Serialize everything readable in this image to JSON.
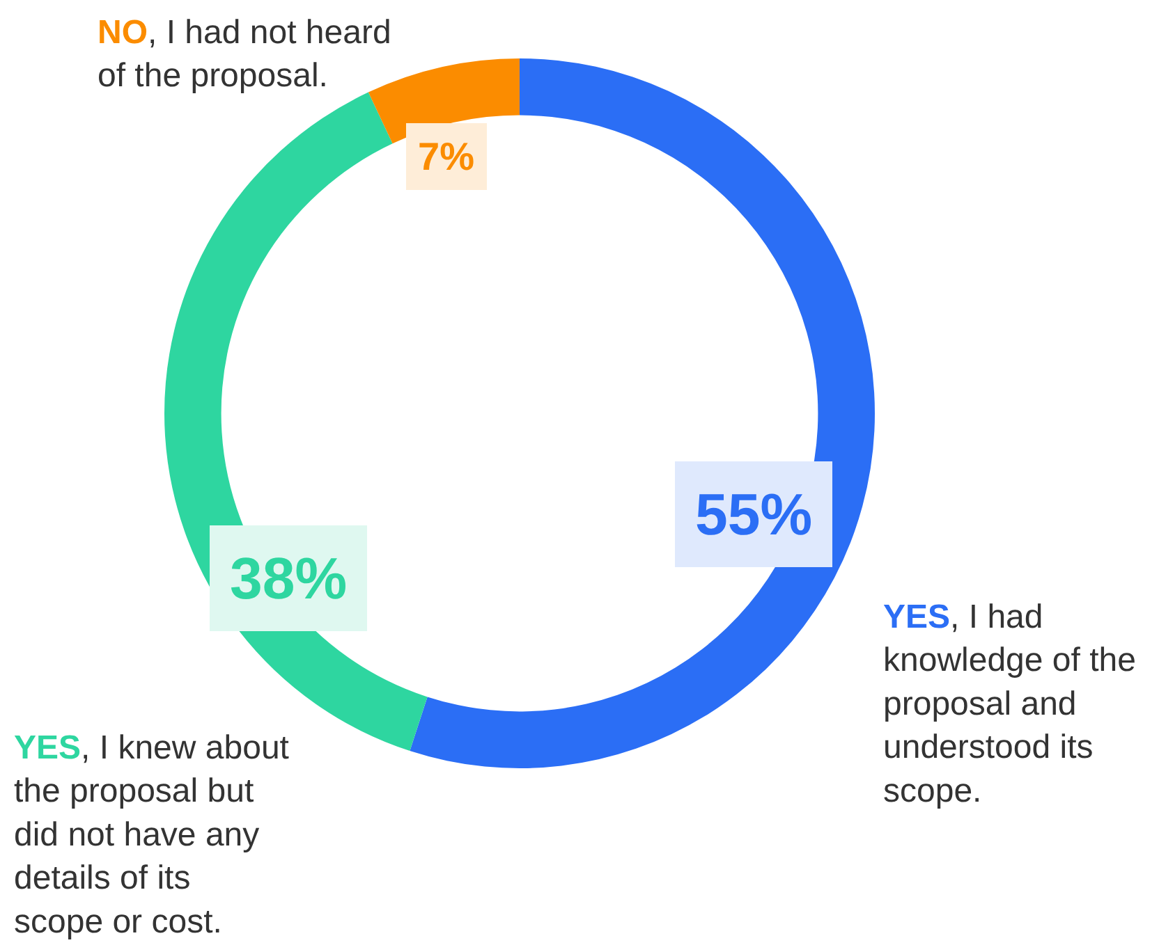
{
  "chart_data": {
    "type": "donut",
    "categories": [
      "YES, I had knowledge of the proposal and understood its scope.",
      "YES, I knew about the proposal but did not have any details of its scope or cost.",
      "NO, I had not heard of the proposal."
    ],
    "values": [
      55,
      38,
      7
    ],
    "value_labels": [
      "55%",
      "38%",
      "7%"
    ],
    "colors": [
      "#2b6ef5",
      "#2ed6a0",
      "#fb8c00"
    ],
    "legend": false
  }
}
